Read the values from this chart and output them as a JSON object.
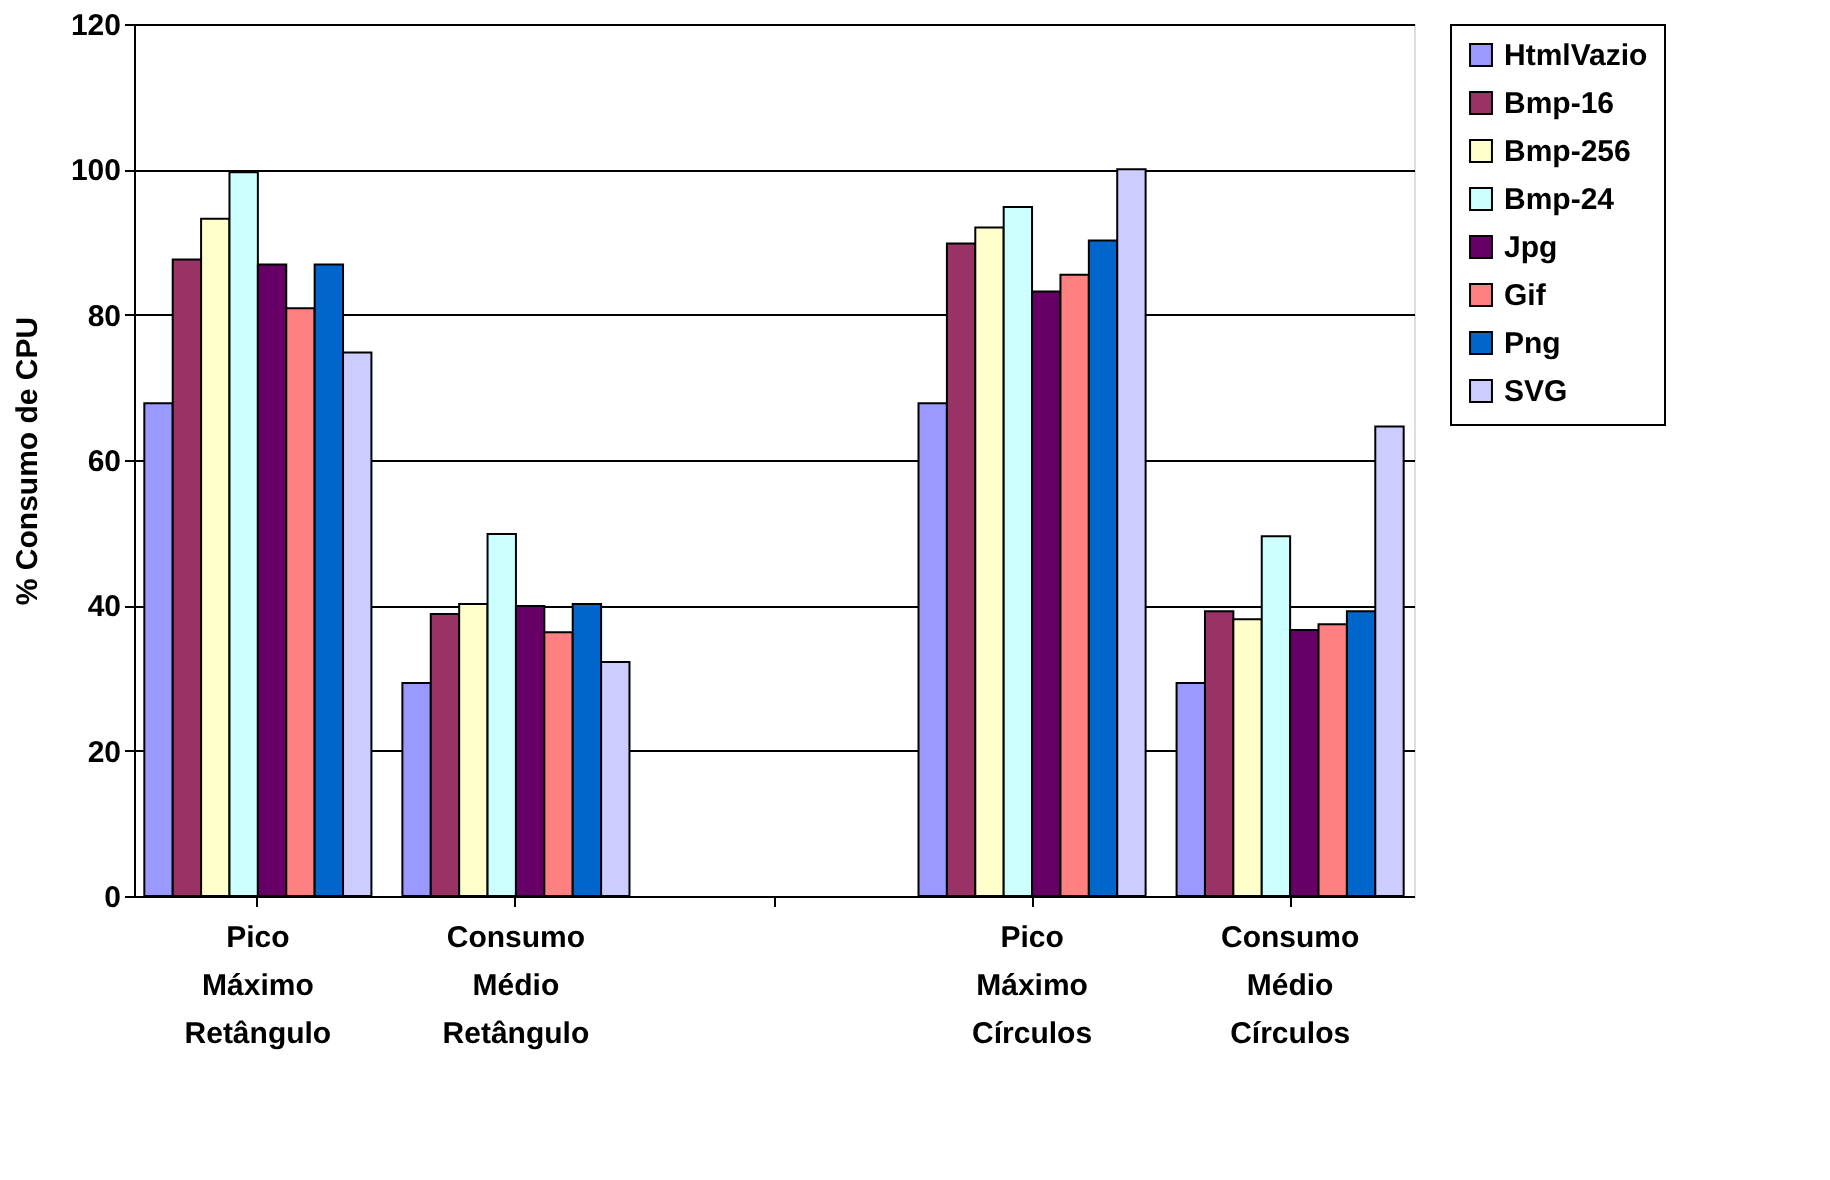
{
  "chart_data": {
    "type": "bar",
    "ylabel": "% Consumo de CPU",
    "categories": [
      "Pico Máximo Retângulo",
      "Consumo Médio Retângulo",
      null,
      "Pico Máximo Círculos",
      "Consumo Médio Círculos"
    ],
    "series": [
      {
        "name": "HtmlVazio",
        "color": "#9999ff",
        "values": [
          67.8,
          29.3,
          null,
          67.8,
          29.3
        ]
      },
      {
        "name": "Bmp-16",
        "color": "#993366",
        "values": [
          87.6,
          38.8,
          null,
          89.8,
          39.2
        ]
      },
      {
        "name": "Bmp-256",
        "color": "#ffffcc",
        "values": [
          93.2,
          40.2,
          null,
          92.0,
          38.1
        ]
      },
      {
        "name": "Bmp-24",
        "color": "#ccffff",
        "values": [
          99.6,
          49.8,
          null,
          94.8,
          49.5
        ]
      },
      {
        "name": "Jpg",
        "color": "#660066",
        "values": [
          86.9,
          39.9,
          null,
          83.2,
          36.6
        ]
      },
      {
        "name": "Gif",
        "color": "#ff8080",
        "values": [
          80.9,
          36.3,
          null,
          85.5,
          37.4
        ]
      },
      {
        "name": "Png",
        "color": "#0066cc",
        "values": [
          86.9,
          40.2,
          null,
          90.2,
          39.2
        ]
      },
      {
        "name": "SVG",
        "color": "#ccccff",
        "values": [
          74.8,
          32.2,
          null,
          100.0,
          64.6
        ]
      }
    ],
    "ylim": [
      0,
      120
    ],
    "yticks": [
      0,
      20,
      40,
      60,
      80,
      100,
      120
    ],
    "grid": "y",
    "legend": "right"
  }
}
